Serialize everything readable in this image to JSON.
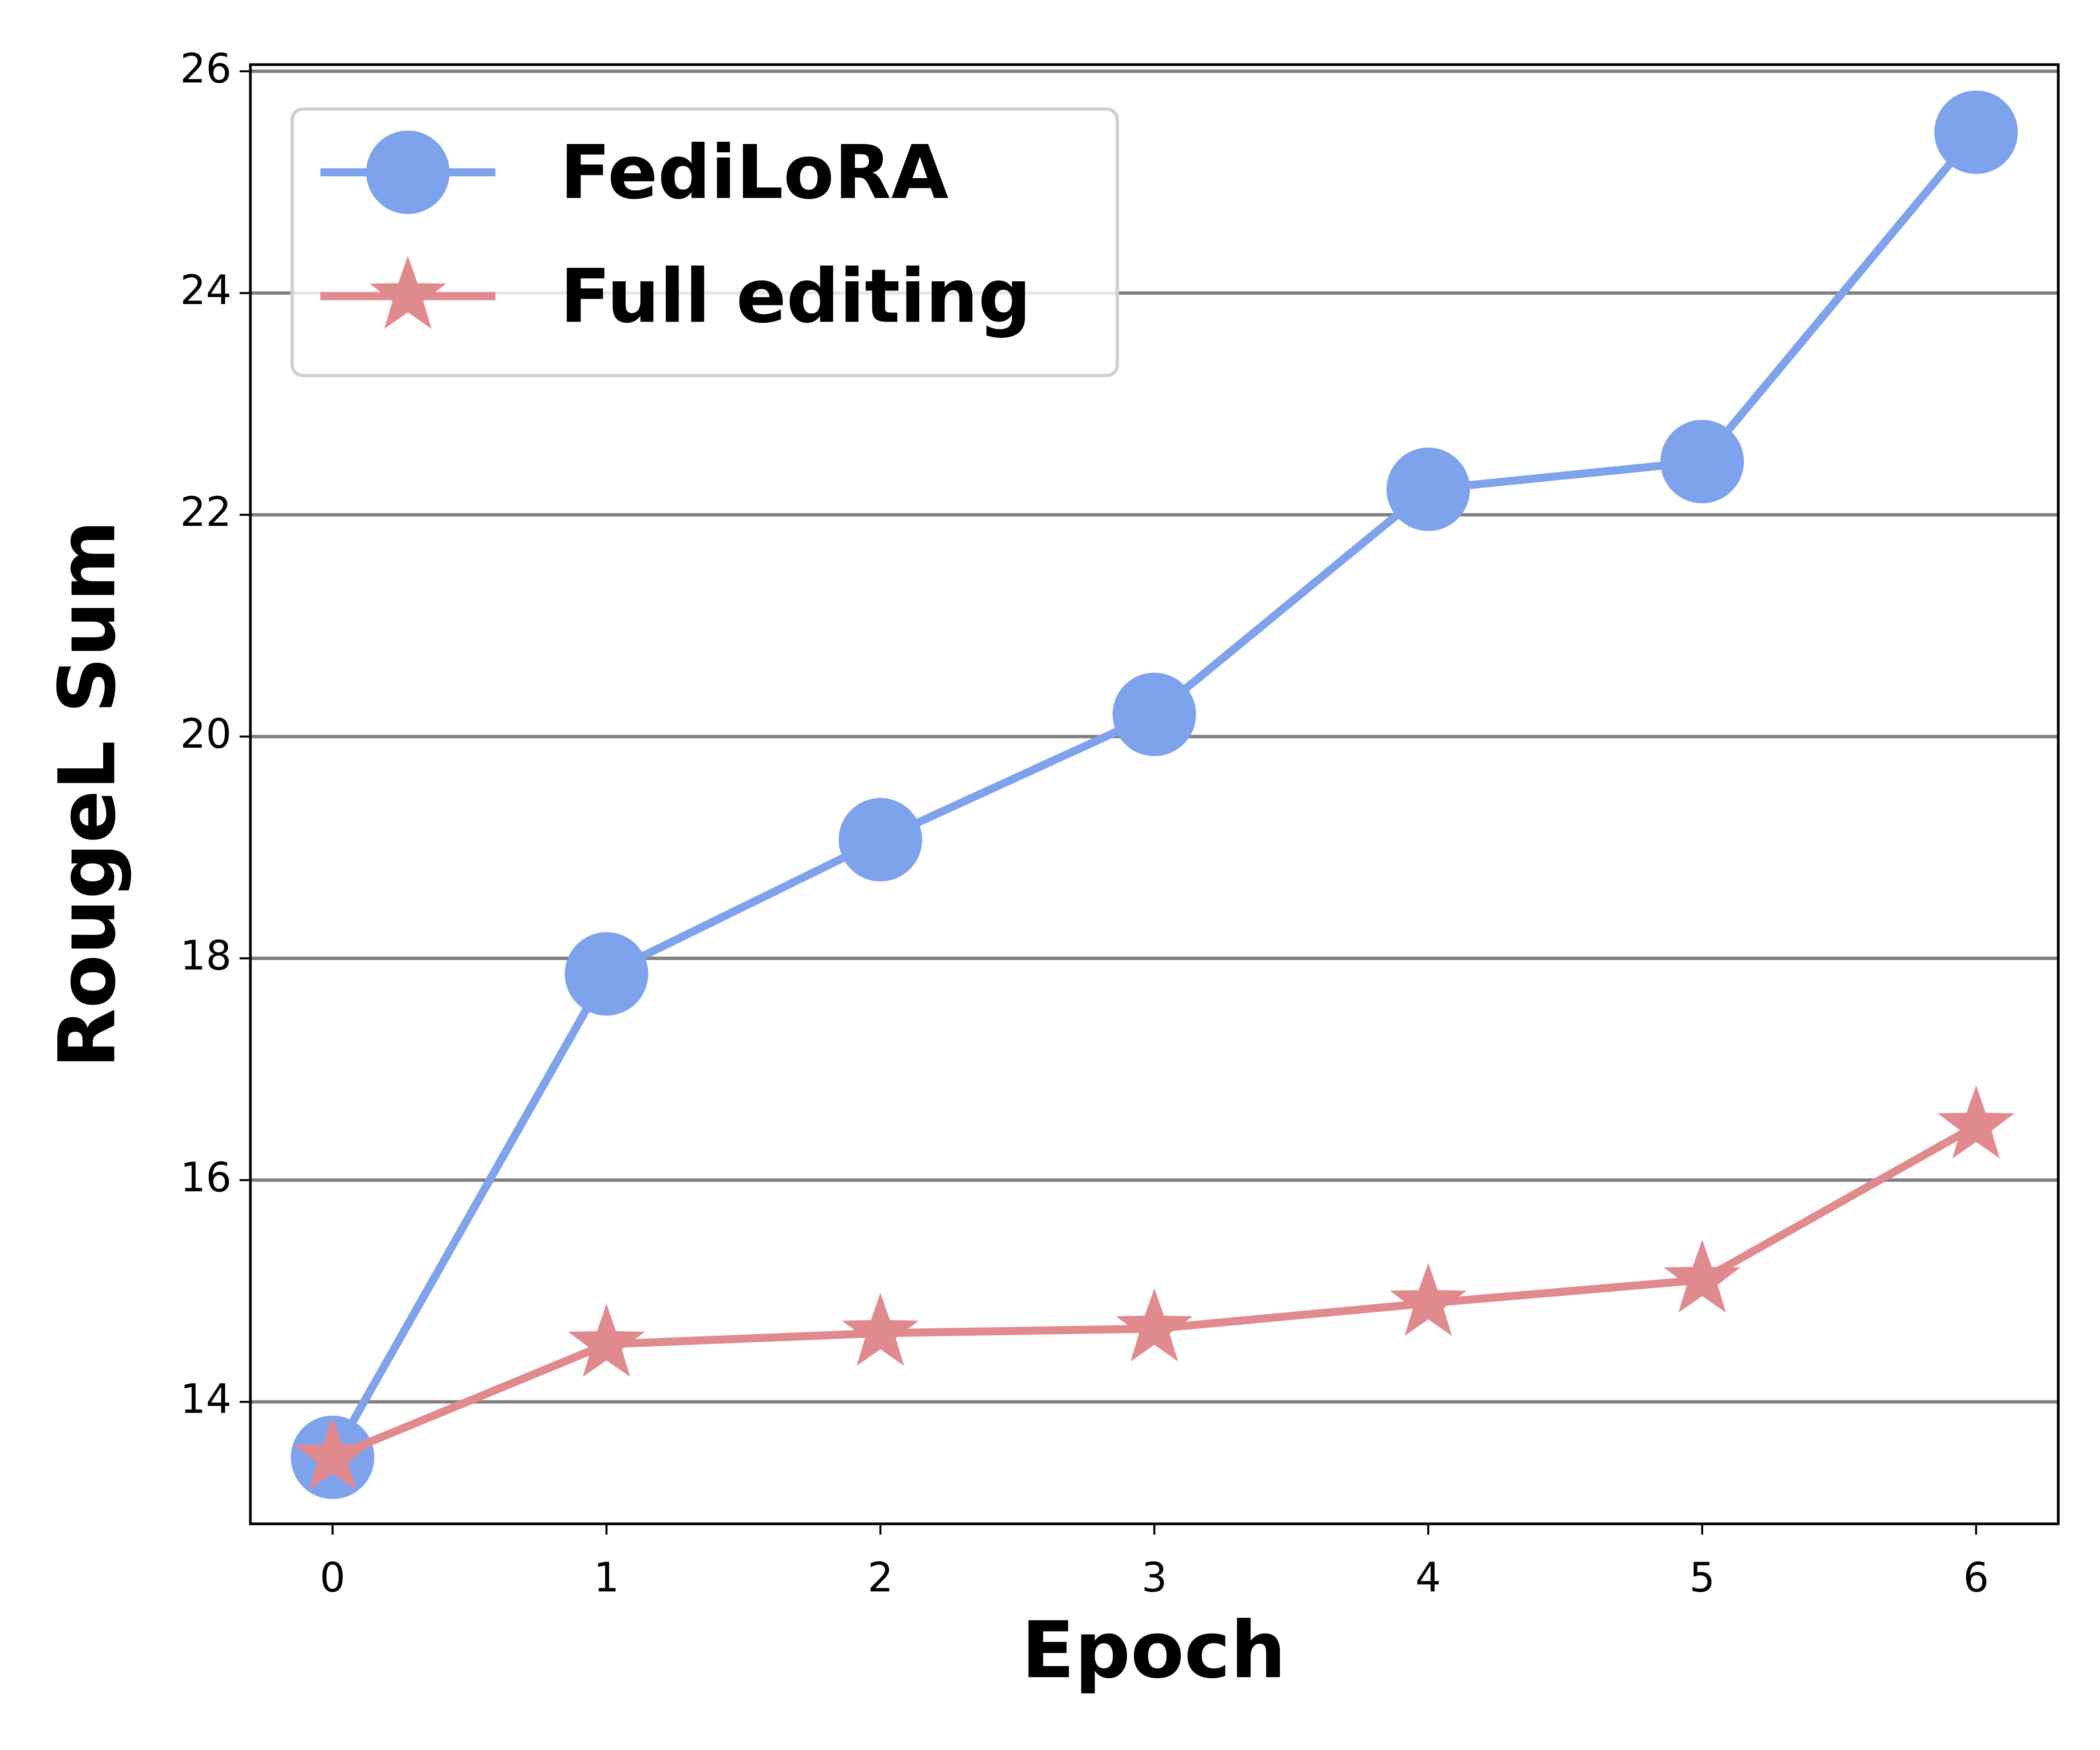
{
  "chart_data": {
    "type": "line",
    "x_label": "Epoch",
    "y_label": "RougeL Sum",
    "x": [
      0,
      1,
      2,
      3,
      4,
      5,
      6
    ],
    "series": [
      {
        "name": "FediLoRA",
        "color": "#7fa2ec",
        "marker": "circle",
        "values": [
          13.5,
          17.86,
          19.07,
          20.2,
          22.23,
          22.48,
          25.45
        ]
      },
      {
        "name": "Full editing",
        "color": "#e08a8e",
        "marker": "star",
        "values": [
          13.5,
          14.52,
          14.62,
          14.66,
          14.89,
          15.1,
          16.49
        ]
      }
    ],
    "xlim": [
      -0.3,
      6.3
    ],
    "xticks": [
      0,
      1,
      2,
      3,
      4,
      5,
      6
    ],
    "ylim": [
      12.9,
      26.06
    ],
    "yticks": [
      14,
      16,
      18,
      20,
      22,
      24,
      26
    ],
    "grid": true,
    "legend": "upper left"
  }
}
